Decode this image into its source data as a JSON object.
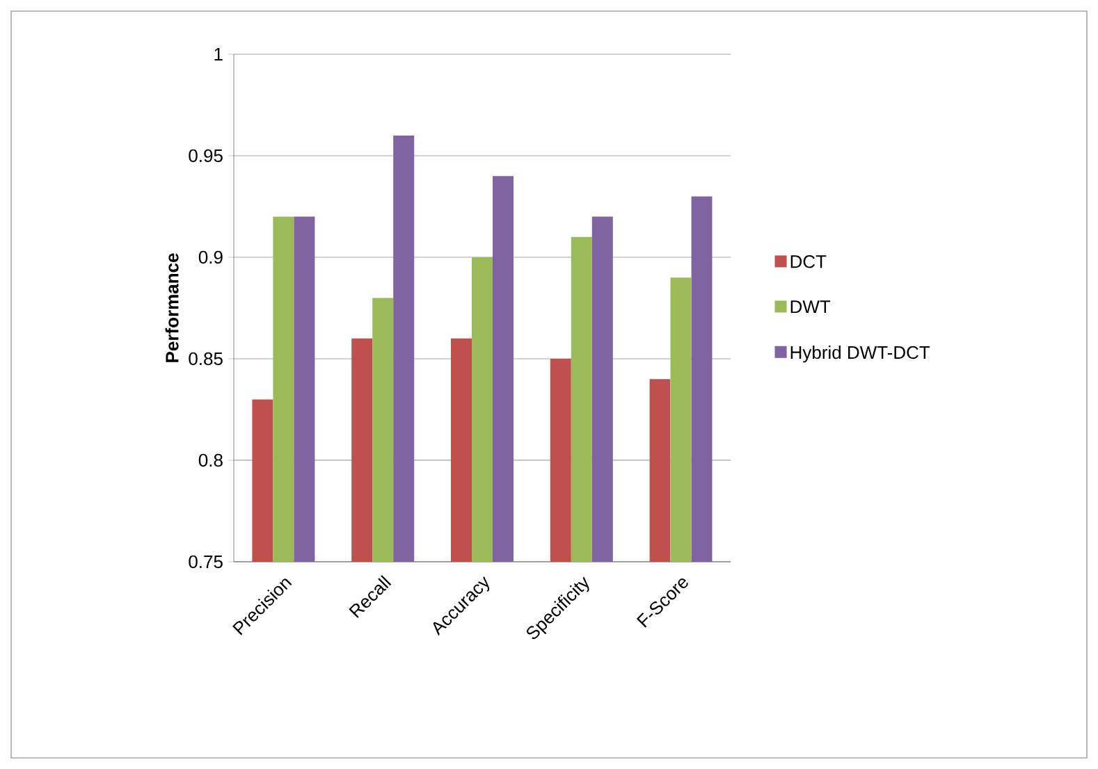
{
  "chart_data": {
    "type": "bar",
    "ylabel": "Performance",
    "categories": [
      "Precision",
      "Recall",
      "Accuracy",
      "Specificity",
      "F-Score"
    ],
    "series": [
      {
        "name": "DCT",
        "color": "#c0504d",
        "values": [
          0.83,
          0.86,
          0.86,
          0.85,
          0.84
        ]
      },
      {
        "name": "DWT",
        "color": "#9bbb59",
        "values": [
          0.92,
          0.88,
          0.9,
          0.91,
          0.89
        ]
      },
      {
        "name": "Hybrid DWT-DCT",
        "color": "#8064a2",
        "values": [
          0.92,
          0.96,
          0.94,
          0.92,
          0.93
        ]
      }
    ],
    "ylim": [
      0.75,
      1
    ],
    "yticks": [
      0.75,
      0.8,
      0.85,
      0.9,
      0.95,
      1
    ],
    "grid": "y",
    "legend": "right"
  }
}
